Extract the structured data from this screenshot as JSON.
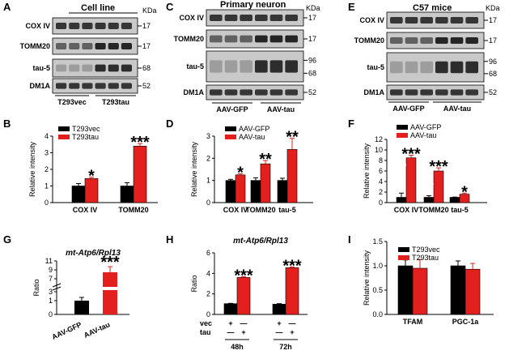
{
  "colors": {
    "black": "#000000",
    "red": "#e3201e",
    "blot_bg": "#c9c9c9",
    "blot_band": "#1c1c1c"
  },
  "panels": {
    "A": {
      "label": "A",
      "title": "Cell line",
      "kda_label": "KDa",
      "rows": [
        {
          "name": "COX IV",
          "kda": "17"
        },
        {
          "name": "TOMM20",
          "kda": "17"
        },
        {
          "name": "tau-5",
          "kda": "68"
        },
        {
          "name": "DM1A",
          "kda": "52"
        }
      ],
      "groups": [
        "T293vec",
        "T293tau"
      ]
    },
    "C": {
      "label": "C",
      "title": "Primary neuron",
      "kda_label": "KDa",
      "rows": [
        {
          "name": "COX IV",
          "kda": "17"
        },
        {
          "name": "TOMM20",
          "kda": "17"
        },
        {
          "name": "tau-5",
          "kda": "96",
          "kda2": "68"
        },
        {
          "name": "DM1A",
          "kda": "52"
        }
      ],
      "groups": [
        "AAV-GFP",
        "AAV-tau"
      ]
    },
    "E": {
      "label": "E",
      "title": "C57 mice",
      "kda_label": "KDa",
      "rows": [
        {
          "name": "COX IV",
          "kda": "17"
        },
        {
          "name": "TOMM20",
          "kda": "17"
        },
        {
          "name": "tau-5",
          "kda": "96",
          "kda2": "68"
        },
        {
          "name": "DM1A",
          "kda": "52"
        }
      ],
      "groups": [
        "AAV-GFP",
        "AAV-tau"
      ]
    },
    "B": {
      "label": "B"
    },
    "D": {
      "label": "D"
    },
    "F": {
      "label": "F"
    },
    "G": {
      "label": "G"
    },
    "H": {
      "label": "H"
    },
    "I": {
      "label": "I"
    }
  },
  "chart_data": [
    {
      "id": "B",
      "type": "bar",
      "categories": [
        "COX IV",
        "TOMM20"
      ],
      "series": [
        {
          "name": "T293vec",
          "values": [
            1.0,
            1.0
          ],
          "errors": [
            0.15,
            0.2
          ]
        },
        {
          "name": "T293tau",
          "values": [
            1.45,
            3.4
          ],
          "errors": [
            0.08,
            0.15
          ]
        }
      ],
      "ylabel": "Relative intensity",
      "ylim": [
        0,
        4
      ],
      "yticks": [
        0,
        1,
        2,
        3,
        4
      ],
      "annotations": [
        "*",
        "***"
      ],
      "legend": "top-left"
    },
    {
      "id": "D",
      "type": "bar",
      "categories": [
        "COX IV",
        "TOMM20",
        "tau-5"
      ],
      "series": [
        {
          "name": "AAV-GFP",
          "values": [
            1.0,
            1.0,
            1.0
          ],
          "errors": [
            0.05,
            0.12,
            0.1
          ]
        },
        {
          "name": "AAV-tau",
          "values": [
            1.25,
            1.75,
            2.4
          ],
          "errors": [
            0.05,
            0.15,
            0.5
          ]
        }
      ],
      "ylabel": "Relative intensity",
      "ylim": [
        0,
        3
      ],
      "yticks": [
        0,
        1,
        2,
        3
      ],
      "annotations": [
        "*",
        "**",
        "**"
      ],
      "legend": "top-left"
    },
    {
      "id": "F",
      "type": "bar",
      "categories": [
        "COX IV",
        "TOMM20",
        "tau-5"
      ],
      "series": [
        {
          "name": "AAV-GFP",
          "values": [
            1.0,
            1.0,
            1.0
          ],
          "errors": [
            0.8,
            0.3,
            0.05
          ]
        },
        {
          "name": "AAV-tau",
          "values": [
            8.5,
            6.0,
            1.6
          ],
          "errors": [
            0.5,
            0.6,
            0.2
          ]
        }
      ],
      "ylabel": "Relative intensity",
      "ylim": [
        0,
        12
      ],
      "yticks": [
        0,
        2,
        4,
        6,
        8,
        10,
        12
      ],
      "annotations": [
        "***",
        "***",
        "*"
      ],
      "legend": "top-left"
    },
    {
      "id": "G",
      "type": "bar",
      "title": "mt-Atp6/Rpl13",
      "categories": [
        "AAV-GFP",
        "AAV-tau"
      ],
      "series": [
        {
          "name": "",
          "values": [
            1.0,
            8.7
          ],
          "errors": [
            0.15,
            0.7
          ]
        }
      ],
      "ylabel": "Ratio",
      "yticks": [
        "0",
        "1",
        "3",
        "7",
        "9",
        "11"
      ],
      "axis_break": true,
      "annotations": [
        "",
        "***"
      ]
    },
    {
      "id": "H",
      "type": "bar",
      "title": "mt-Atp6/Rpl13",
      "categories": [
        "48h",
        "72h"
      ],
      "series": [
        {
          "name": "vec",
          "values": [
            1.05,
            1.0
          ],
          "errors": [
            0.03,
            0.05
          ]
        },
        {
          "name": "tau",
          "values": [
            3.6,
            4.55
          ],
          "errors": [
            0.08,
            0.08
          ]
        }
      ],
      "ylabel": "Ratio",
      "ylim": [
        0,
        6
      ],
      "yticks": [
        0,
        2,
        4,
        6
      ],
      "row_labels": [
        "vec",
        "tau"
      ],
      "signs": {
        "vec": [
          "+",
          "—",
          "+",
          "—"
        ],
        "tau": [
          "—",
          "+",
          "—",
          "+"
        ]
      },
      "annotations": [
        "***",
        "***"
      ]
    },
    {
      "id": "I",
      "type": "bar",
      "categories": [
        "TFAM",
        "PGC-1a"
      ],
      "series": [
        {
          "name": "T293vec",
          "values": [
            1.0,
            1.0
          ],
          "errors": [
            0.12,
            0.1
          ]
        },
        {
          "name": "T293tau",
          "values": [
            0.95,
            0.93
          ],
          "errors": [
            0.18,
            0.12
          ]
        }
      ],
      "ylabel": "Relative intensity",
      "ylim": [
        0,
        1.5
      ],
      "yticks": [
        "0.0",
        "0.5",
        "1.0",
        "1.5"
      ],
      "legend": "top-left"
    }
  ]
}
